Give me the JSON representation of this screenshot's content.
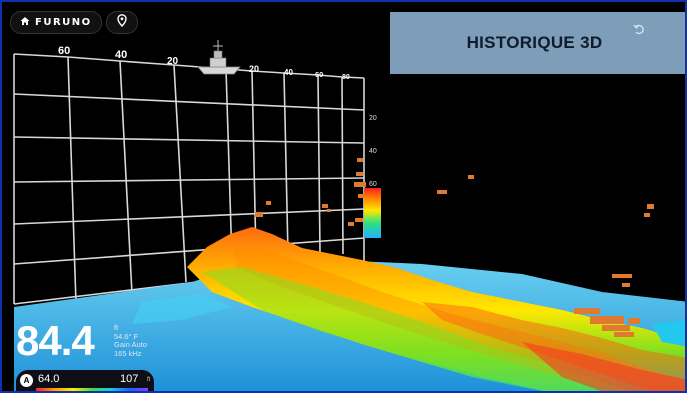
{
  "app": {
    "brand": "FURUNO",
    "title": "HISTORIQUE 3D"
  },
  "icons": {
    "home": "home-icon",
    "location": "map-pin-icon",
    "undo": "undo-icon"
  },
  "grid": {
    "top_labels": [
      "60",
      "40",
      "20",
      "20",
      "40",
      "60",
      "80"
    ],
    "depth_labels": [
      "20",
      "40",
      "60"
    ]
  },
  "readout": {
    "depth_value": "84.4",
    "depth_unit": "ft",
    "water_temp": "54.6° F",
    "gain": "Gain Auto",
    "frequency": "165 kHz"
  },
  "color_scale": {
    "badge": "A",
    "min": "64.0",
    "max": "107",
    "unit": "ft"
  },
  "colors": {
    "frame": "#1030b0",
    "title_panel": "#7d9db8",
    "background": "#000000"
  }
}
